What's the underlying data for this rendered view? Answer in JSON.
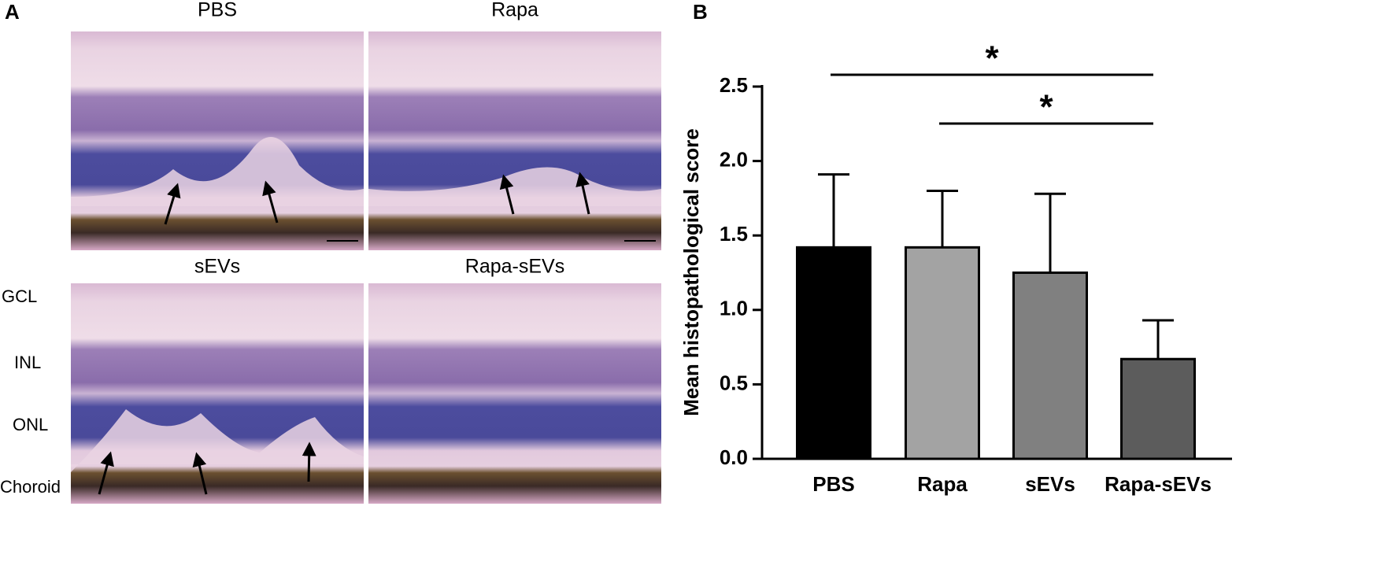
{
  "panel_a": {
    "label": "A",
    "images": [
      {
        "title": "PBS"
      },
      {
        "title": "Rapa"
      },
      {
        "title": "sEVs"
      },
      {
        "title": "Rapa-sEVs"
      }
    ],
    "layers": [
      "GCL",
      "INL",
      "ONL",
      "Choroid"
    ]
  },
  "chart_data": {
    "type": "bar",
    "label": "B",
    "y_label": "Mean histopathological score",
    "categories": [
      "PBS",
      "Rapa",
      "sEVs",
      "Rapa-sEVs"
    ],
    "series": [
      {
        "name": null,
        "colors": [
          "#000000",
          "#a3a3a3",
          "#808080",
          "#5c5c5c"
        ],
        "values": [
          1.42,
          1.42,
          1.25,
          0.67
        ],
        "errors": [
          0.49,
          0.38,
          0.53,
          0.26
        ]
      }
    ],
    "ylim": [
      0,
      2.5
    ],
    "yticks": [
      {
        "value": 0,
        "label": "0.0"
      },
      {
        "value": 0.5,
        "label": "0.5"
      },
      {
        "value": 1,
        "label": "1.0"
      },
      {
        "value": 1.5,
        "label": "1.5"
      },
      {
        "value": 2,
        "label": "2.0"
      },
      {
        "value": 2.5,
        "label": "2.5"
      }
    ],
    "annotations": [
      {
        "between": [
          "PBS",
          "Rapa-sEVs"
        ],
        "text": "*"
      },
      {
        "between": [
          "Rapa",
          "Rapa-sEVs"
        ],
        "text": "*"
      }
    ]
  }
}
